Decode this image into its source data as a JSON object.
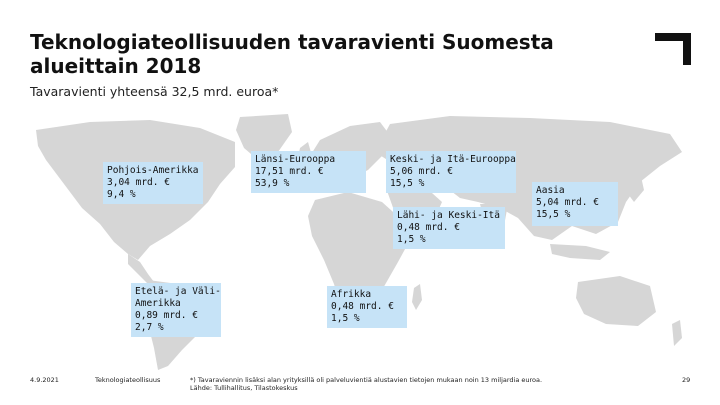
{
  "slide": {
    "title": "Teknologiateollisuuden tavaravienti Suomesta alueittain 2018",
    "subtitle": "Tavaravienti yhteensä 32,5 mrd. euroa*"
  },
  "regions": {
    "north_america": {
      "name": "Pohjois-Amerikka",
      "value": "3,04 mrd. €",
      "share": "9,4 %"
    },
    "western_europe": {
      "name": "Länsi-Eurooppa",
      "value": "17,51 mrd. €",
      "share": "53,9 %"
    },
    "central_eastern_europe": {
      "name": "Keski- ja Itä-Eurooppa",
      "value": "5,06 mrd. €",
      "share": "15,5 %"
    },
    "asia": {
      "name": "Aasia",
      "value": "5,04 mrd. €",
      "share": "15,5 %"
    },
    "middle_east": {
      "name": "Lähi- ja Keski-Itä",
      "value": "0,48 mrd. €",
      "share": "1,5 %"
    },
    "latin_america": {
      "name_line1": "Etelä- ja Väli-",
      "name_line2": "Amerikka",
      "value": "0,89 mrd. €",
      "share": "2,7 %"
    },
    "africa": {
      "name": "Afrikka",
      "value": "0,48 mrd. €",
      "share": "1,5 %"
    }
  },
  "footer": {
    "date": "4.9.2021",
    "org": "Teknologiateollisuus",
    "note_line1": "*) Tavaraviennin lisäksi alan yrityksillä oli palveluvientiä alustavien tietojen mukaan noin 13 miljardia euroa.",
    "note_line2": "Lähde: Tullihallitus, Tilastokeskus",
    "page": "29"
  },
  "colors": {
    "land": "#d6d6d6",
    "label_bg": "#c6e3f7",
    "logo": "#111111"
  },
  "icons": {
    "logo": "corner-bracket-logo"
  }
}
